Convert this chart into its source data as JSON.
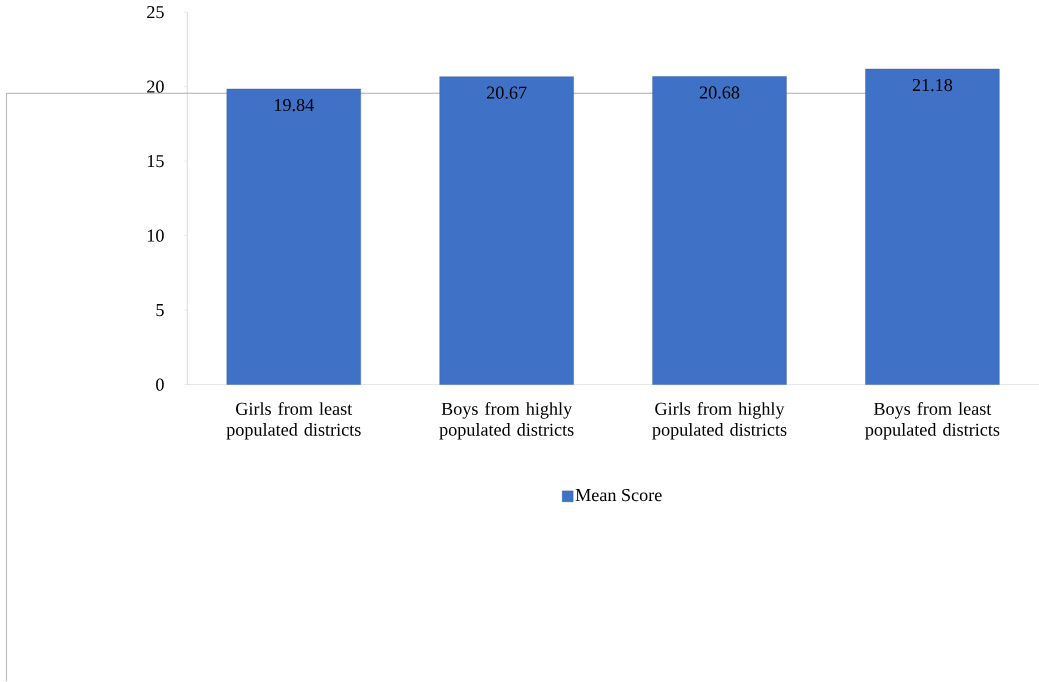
{
  "chart_data": {
    "type": "bar",
    "categories": [
      "Girls from least populated districts",
      "Boys from highly populated districts",
      "Girls from highly populated districts",
      "Boys from least populated districts"
    ],
    "series": [
      {
        "name": "Mean Score",
        "color": "#3f72c6",
        "values": [
          19.84,
          20.67,
          20.68,
          21.18
        ]
      }
    ],
    "ylim": [
      0,
      25
    ],
    "yticks": [
      0,
      5,
      10,
      15,
      20,
      25
    ],
    "data_labels": true,
    "legend": "bottom",
    "grid": false
  }
}
